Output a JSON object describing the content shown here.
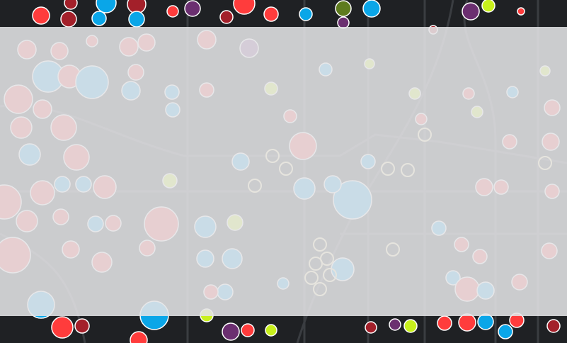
{
  "map": {
    "background": "#1f2124",
    "road_color": "#3a3d41",
    "overlay_color": "#e4e4e6",
    "marker_colors": {
      "red": "#ff3c3c",
      "dark_red": "#a3202a",
      "blue": "#0aa6e8",
      "purple": "#6b2f70",
      "lime": "#c8f01c",
      "olive": "#5e7b1e",
      "ring": "#f0e6a0"
    }
  }
}
